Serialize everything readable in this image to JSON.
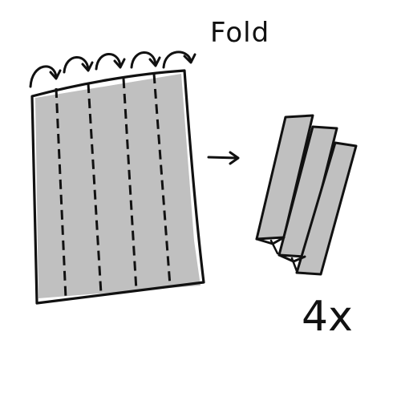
{
  "labels": {
    "fold": "Fold",
    "count": "4x"
  },
  "colors": {
    "ink": "#111111",
    "paper_shade": "#c0c0c0",
    "background": "#ffffff"
  },
  "icons": {
    "fold_arrows": "curved-arrow-icon",
    "direction": "right-arrow-icon"
  }
}
